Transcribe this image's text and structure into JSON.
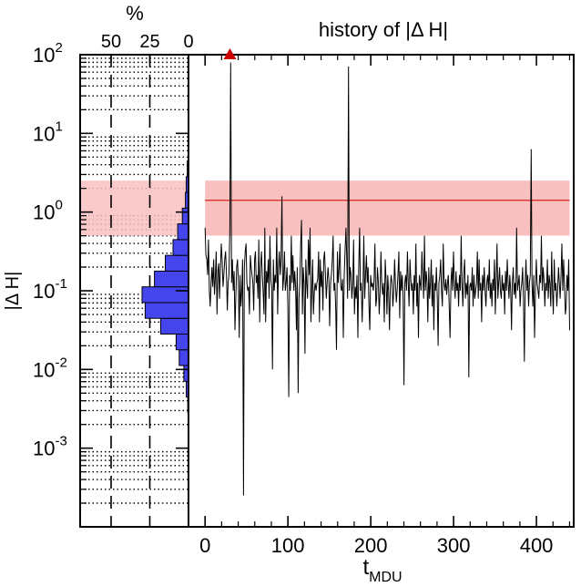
{
  "chart_data": [
    {
      "type": "bar",
      "orientation": "horizontal",
      "title": "%",
      "xlabel": "%",
      "ylabel": "|Δ H|",
      "x_ticks": [
        "50",
        "25",
        "0"
      ],
      "xlim": [
        70,
        0
      ],
      "y_scale": "log",
      "ylim_exp": [
        -4,
        2
      ],
      "y_tick_base": "10",
      "y_tick_exponents": [
        "-3",
        "-2",
        "-1",
        "0",
        "1",
        "2"
      ],
      "bins_log10": [
        {
          "lo": -2.55,
          "hi": -2.35,
          "pct": 0.5
        },
        {
          "lo": -2.35,
          "hi": -2.15,
          "pct": 1.5
        },
        {
          "lo": -2.15,
          "hi": -1.95,
          "pct": 3
        },
        {
          "lo": -1.95,
          "hi": -1.75,
          "pct": 6
        },
        {
          "lo": -1.75,
          "hi": -1.55,
          "pct": 8
        },
        {
          "lo": -1.55,
          "hi": -1.35,
          "pct": 18
        },
        {
          "lo": -1.35,
          "hi": -1.15,
          "pct": 28
        },
        {
          "lo": -1.15,
          "hi": -0.95,
          "pct": 30
        },
        {
          "lo": -0.95,
          "hi": -0.75,
          "pct": 22
        },
        {
          "lo": -0.75,
          "hi": -0.55,
          "pct": 15
        },
        {
          "lo": -0.55,
          "hi": -0.35,
          "pct": 10
        },
        {
          "lo": -0.35,
          "hi": -0.15,
          "pct": 7
        },
        {
          "lo": -0.15,
          "hi": 0.05,
          "pct": 4
        },
        {
          "lo": 0.05,
          "hi": 0.25,
          "pct": 2
        },
        {
          "lo": 0.25,
          "hi": 0.45,
          "pct": 1.5
        },
        {
          "lo": 0.45,
          "hi": 0.65,
          "pct": 0.8
        }
      ],
      "dashed_lines_pct": [
        50,
        25
      ],
      "band_log10": [
        -0.3,
        0.4
      ]
    },
    {
      "type": "line",
      "title": "history of |Δ H|",
      "xlabel_main": "t",
      "xlabel_sub": "MDU",
      "xlim": [
        -20,
        445
      ],
      "x_ticks": [
        "0",
        "100",
        "200",
        "300",
        "400"
      ],
      "y_scale": "log",
      "ylim_exp": [
        -4,
        2
      ],
      "median_log10": 0.15,
      "band_log10": [
        -0.3,
        0.4
      ],
      "marker": {
        "x": 30,
        "log10": 2.0,
        "shape": "triangle"
      },
      "series": [
        {
          "name": "|Δ H|",
          "values_log10": [
            -0.2,
            -0.55,
            -0.6,
            -0.8,
            -0.35,
            -1.0,
            -1.2,
            -0.9,
            -0.7,
            -0.95,
            -0.6,
            -1.05,
            -0.85,
            -0.5,
            -1.3,
            -0.75,
            -0.65,
            -1.1,
            -0.7,
            -0.4,
            -0.6,
            -0.95,
            -0.8,
            -0.6,
            -0.5,
            -0.75,
            -1.25,
            -0.9,
            -0.8,
            -0.2,
            1.9,
            -0.9,
            -0.6,
            -1.0,
            -0.75,
            -1.5,
            -1.1,
            -0.7,
            -0.6,
            -0.9,
            -1.6,
            -0.8,
            -1.2,
            -1.0,
            -0.6,
            -3.6,
            -0.7,
            -0.5,
            -0.4,
            -0.9,
            -1.0,
            -0.95,
            -1.3,
            -0.55,
            -0.7,
            -0.8,
            -0.9,
            -1.25,
            -0.6,
            -0.5,
            -0.9,
            -0.8,
            -1.1,
            -0.35,
            -1.4,
            -0.7,
            -0.5,
            -0.8,
            -1.0,
            -1.3,
            -0.2,
            -1.4,
            -0.75,
            -0.9,
            -0.6,
            -1.1,
            -0.3,
            -0.85,
            -0.95,
            -2.0,
            -0.6,
            -1.0,
            -0.8,
            -0.9,
            -0.2,
            -1.3,
            -0.7,
            -0.5,
            -0.8,
            -0.6,
            0.2,
            -1.0,
            -0.85,
            -0.5,
            -1.0,
            -0.9,
            -0.7,
            -1.2,
            -2.35,
            -0.8,
            -1.0,
            -0.3,
            -0.9,
            -0.55,
            -1.0,
            -0.75,
            -0.95,
            -1.5,
            -0.7,
            -2.3,
            -1.1,
            -0.9,
            -0.4,
            -0.1,
            -1.3,
            -0.7,
            -0.9,
            -1.8,
            -0.6,
            -0.9,
            -1.1,
            -0.35,
            -0.8,
            -0.2,
            -1.4,
            -1.0,
            -0.6,
            -1.3,
            -1.0,
            -0.9,
            -1.0,
            -0.9,
            -0.85,
            -0.5,
            -1.4,
            -0.6,
            -0.95,
            -0.75,
            -1.25,
            -0.6,
            -0.5,
            -0.8,
            -1.1,
            -0.9,
            -0.7,
            -0.85,
            -1.45,
            -0.9,
            -0.8,
            -0.6,
            -0.3,
            -1.0,
            -0.9,
            -1.2,
            -1.75,
            -0.5,
            -0.9,
            -0.7,
            -0.4,
            -0.95,
            -1.0,
            -0.85,
            -1.6,
            -0.8,
            -0.5,
            -0.2,
            -0.6,
            -1.1,
            1.85,
            -1.0,
            -0.7,
            -0.8,
            -1.1,
            -0.9,
            -0.35,
            -1.3,
            -0.95,
            -1.1,
            -0.8,
            -1.6,
            -0.7,
            -0.2,
            -1.0,
            -0.9,
            -1.4,
            -1.0,
            -0.3,
            -1.1,
            -0.8,
            -0.55,
            -0.9,
            -0.7,
            -1.2,
            -1.5,
            -0.8,
            -0.95,
            -0.9,
            -1.0,
            -0.85,
            -0.4,
            -1.2,
            -1.1,
            -0.7,
            -0.9,
            -1.3,
            -1.0,
            -0.5,
            -0.9,
            -1.05,
            -0.9,
            -1.4,
            -0.6,
            -0.85,
            -1.3,
            -0.8,
            -1.0,
            -1.5,
            -0.95,
            -0.8,
            -0.9,
            -1.2,
            -1.0,
            -0.6,
            -0.9,
            -1.15,
            -1.0,
            -0.8,
            -0.5,
            -1.35,
            -0.75,
            -1.0,
            -0.8,
            -1.1,
            -2.2,
            -0.9,
            -0.8,
            -1.0,
            -0.5,
            -0.9,
            -1.2,
            -0.6,
            -0.85,
            -1.0,
            -0.9,
            -1.3,
            -0.8,
            -1.0,
            -0.4,
            -1.2,
            -0.9,
            -1.6,
            -0.8,
            -0.9,
            -1.0,
            -0.5,
            -0.8,
            -1.1,
            -0.3,
            -1.0,
            -0.75,
            -0.9,
            -1.4,
            -0.7,
            -1.1,
            -0.9,
            -0.6,
            -1.2,
            -0.8,
            -1.5,
            -0.9,
            -1.0,
            -0.7,
            -1.1,
            -1.7,
            -0.9,
            -0.8,
            -0.6,
            -1.0,
            -1.2,
            -0.4,
            -0.9,
            -1.0,
            -0.85,
            -1.05,
            -0.9,
            -0.8,
            -1.2,
            -1.6,
            -0.9,
            -0.7,
            -1.0,
            -0.5,
            -0.9,
            -1.1,
            -0.75,
            -1.0,
            -0.9,
            -1.2,
            -0.8,
            -1.0,
            -0.3,
            -0.9,
            -1.2,
            -0.8,
            -0.6,
            -1.1,
            -0.9,
            -1.05,
            -0.8,
            -2.1,
            -0.95,
            -0.9,
            -1.0,
            -0.7,
            -1.2,
            -0.8,
            -1.1,
            -1.0,
            -0.9,
            -0.5,
            -1.1,
            -0.6,
            -1.0,
            -0.9,
            -1.4,
            -0.8,
            -1.0,
            -0.7,
            -1.0,
            -1.2,
            -0.9,
            -0.8,
            -1.0,
            -0.6,
            -1.1,
            -0.9,
            -1.2,
            -0.85,
            -1.0,
            -0.6,
            -1.3,
            -0.9,
            -0.4,
            -1.1,
            -0.9,
            -0.7,
            -1.0,
            -1.1,
            -0.8,
            -1.0,
            -0.9,
            -1.3,
            -0.75,
            -1.0,
            -0.6,
            -0.9,
            -1.1,
            -0.8,
            -1.0,
            -1.5,
            -0.9,
            -0.7,
            -1.05,
            -0.9,
            -1.1,
            -0.2,
            -1.0,
            -0.9,
            -0.8,
            -1.2,
            -1.0,
            -0.9,
            -0.7,
            -1.1,
            -1.9,
            -0.9,
            -0.6,
            -1.0,
            -0.8,
            -1.2,
            -0.9,
            -0.8,
            0.8,
            -0.9,
            -1.2,
            -0.8,
            -1.6,
            -1.0,
            -0.6,
            -0.9,
            -1.0,
            -1.1,
            -0.8,
            -0.9,
            -0.3,
            -1.0,
            -0.7,
            -0.85,
            -1.2,
            -0.9,
            -1.0,
            -0.6,
            -1.1,
            -0.8,
            -0.9,
            -1.2,
            -0.5,
            -1.0,
            -1.3,
            -0.6,
            -1.0,
            -0.9,
            -1.2,
            -1.0,
            -0.7,
            -0.9,
            -1.1,
            -0.8,
            -0.4,
            -1.0,
            -0.6,
            -0.9,
            -1.3,
            -1.2,
            -0.8,
            -1.0,
            -0.6,
            -1.5
          ]
        }
      ]
    }
  ]
}
